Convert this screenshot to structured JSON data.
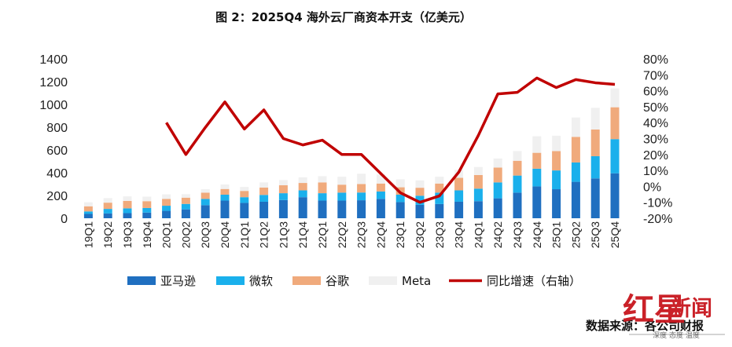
{
  "chart_data": {
    "type": "bar",
    "title": "图 2：2025Q4 海外云厂商资本开支（亿美元）",
    "categories": [
      "19Q1",
      "19Q2",
      "19Q3",
      "19Q4",
      "20Q1",
      "20Q2",
      "20Q3",
      "20Q4",
      "21Q1",
      "21Q2",
      "21Q3",
      "21Q4",
      "22Q1",
      "22Q2",
      "22Q3",
      "22Q4",
      "23Q1",
      "23Q2",
      "23Q3",
      "23Q4",
      "24Q1",
      "24Q2",
      "24Q3",
      "24Q4",
      "25Q1",
      "25Q2",
      "25Q3",
      "25Q4"
    ],
    "stacked": true,
    "series": [
      {
        "name": "亚马逊",
        "color": "#1f6fc0",
        "values": [
          38,
          42,
          45,
          50,
          65,
          78,
          115,
          155,
          135,
          145,
          160,
          185,
          155,
          155,
          158,
          170,
          142,
          118,
          125,
          145,
          150,
          175,
          225,
          280,
          255,
          320,
          350,
          395
        ]
      },
      {
        "name": "微软",
        "color": "#1ab0ec",
        "values": [
          22,
          40,
          42,
          40,
          45,
          48,
          55,
          52,
          50,
          60,
          60,
          60,
          65,
          70,
          68,
          65,
          65,
          80,
          100,
          100,
          110,
          140,
          150,
          155,
          165,
          170,
          195,
          300
        ]
      },
      {
        "name": "谷歌",
        "color": "#f0aa7c",
        "values": [
          45,
          55,
          65,
          60,
          60,
          55,
          55,
          50,
          55,
          65,
          70,
          65,
          95,
          70,
          75,
          70,
          65,
          70,
          80,
          110,
          120,
          130,
          130,
          140,
          170,
          225,
          235,
          280
        ]
      },
      {
        "name": "Meta",
        "color": "#f0f0f0",
        "values": [
          35,
          40,
          40,
          40,
          40,
          30,
          30,
          40,
          35,
          45,
          45,
          50,
          55,
          70,
          90,
          80,
          70,
          65,
          60,
          70,
          70,
          80,
          85,
          145,
          135,
          170,
          190,
          165
        ]
      }
    ],
    "line_series": {
      "name": "同比增速（右轴）",
      "color": "#c00000",
      "axis": "right",
      "values": [
        null,
        null,
        null,
        null,
        40,
        20,
        37,
        53,
        36,
        48,
        30,
        26,
        29,
        20,
        20,
        8,
        -4,
        -10,
        -6,
        9,
        32,
        58,
        59,
        68,
        62,
        67,
        65,
        64
      ]
    },
    "ylim": [
      0,
      1400
    ],
    "yticks": [
      "0",
      "200",
      "400",
      "600",
      "800",
      "1000",
      "1200",
      "1400"
    ],
    "y2lim": [
      -20,
      80
    ],
    "y2ticks": [
      "-20%",
      "-10%",
      "0%",
      "10%",
      "20%",
      "30%",
      "40%",
      "50%",
      "60%",
      "70%",
      "80%"
    ],
    "grid": false,
    "legend_position": "bottom",
    "source": "数据来源：各公司财报"
  },
  "watermark": {
    "brand_red": "红星",
    "brand_text": "新闻",
    "slogan": "深度 态度 温度"
  }
}
